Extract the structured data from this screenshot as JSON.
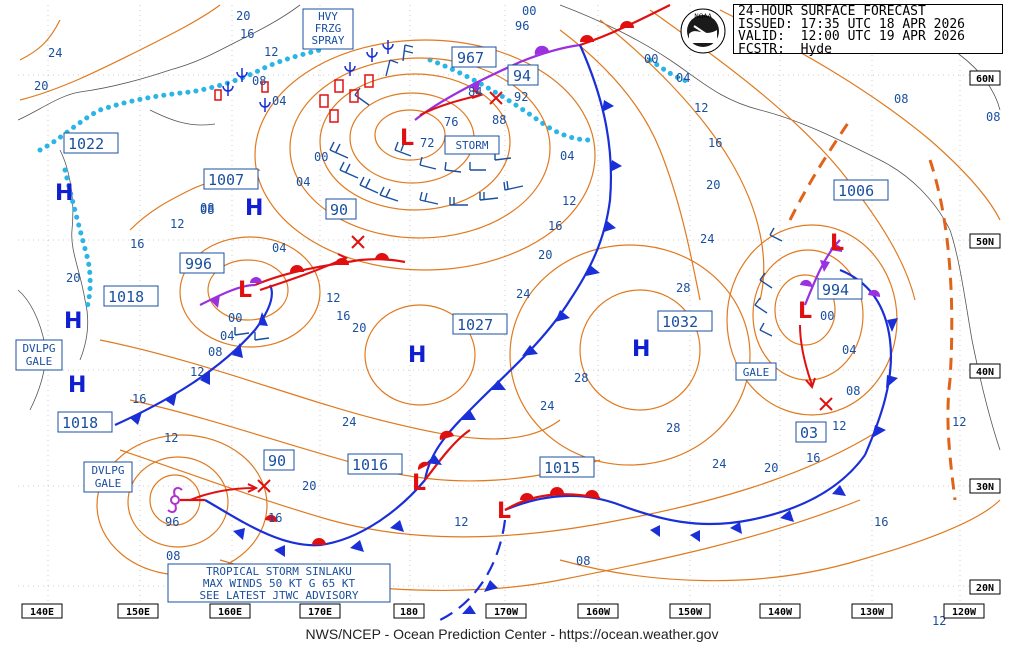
{
  "header": {
    "title": "24-HOUR SURFACE FORECAST",
    "issued": "ISSUED: 17:35 UTC 18 APR 2026",
    "valid": "VALID:  12:00 UTC 19 APR 2026",
    "forecaster": "FCSTR:  Hyde"
  },
  "logo": {
    "text": "NOAA"
  },
  "footer": "NWS/NCEP - Ocean Prediction Center - https://ocean.weather.gov",
  "lon_labels": [
    "140E",
    "150E",
    "160E",
    "170E",
    "180",
    "170W",
    "160W",
    "150W",
    "140W",
    "130W",
    "120W"
  ],
  "lat_labels": [
    "60N",
    "50N",
    "40N",
    "30N",
    "20N"
  ],
  "warnings": {
    "hvy_frzg_spray": [
      "HVY",
      "FRZG",
      "SPRAY"
    ],
    "storm": "STORM",
    "dvlpg_gale_west": [
      "DVLPG",
      "GALE"
    ],
    "dvlpg_gale_south": [
      "DVLPG",
      "GALE"
    ],
    "gale_east": "GALE"
  },
  "tropical": [
    "TROPICAL STORM SINLAKU",
    "MAX WINDS 50 KT G 65 KT",
    "SEE LATEST JTWC ADVISORY"
  ],
  "pressure_centers": {
    "h_1022": "1022",
    "h_1007": "1007",
    "l_996": "996",
    "h_1018_w": "1018",
    "h_1018_sw": "1018",
    "l_967": "967",
    "l_94": "94",
    "l_90": "90",
    "h_1027": "1027",
    "h_1032": "1032",
    "l_1006": "1006",
    "l_994": "994",
    "l_1016": "1016",
    "l_1015": "1015",
    "l_90_trop": "90",
    "l_03": "03"
  },
  "symbols": {
    "high": "H",
    "low": "L"
  },
  "isobar_labels": [
    "24",
    "20",
    "20",
    "16",
    "12",
    "08",
    "04",
    "00",
    "96",
    "92",
    "88",
    "84",
    "76",
    "72",
    "00",
    "04",
    "08",
    "12",
    "16",
    "20",
    "24",
    "28",
    "28",
    "24",
    "20",
    "16",
    "12",
    "08",
    "04",
    "00",
    "12",
    "16",
    "20",
    "24",
    "28",
    "24",
    "20",
    "16",
    "12",
    "08",
    "04",
    "00",
    "96",
    "08",
    "16",
    "20",
    "24",
    "04",
    "08",
    "12",
    "16",
    "12",
    "08",
    "04",
    "00",
    "20",
    "16",
    "12",
    "08",
    "04",
    "12",
    "16",
    "12",
    "08",
    "12"
  ]
}
